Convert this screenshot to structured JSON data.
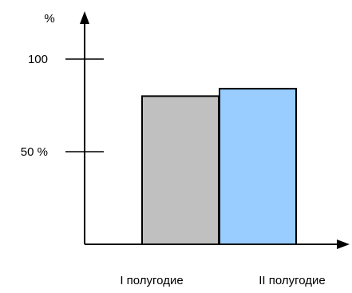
{
  "chart_data": {
    "type": "bar",
    "unit_label": "%",
    "categories": [
      "I полугодие",
      "II полугодие"
    ],
    "values": [
      80,
      84
    ],
    "y_ticks": [
      {
        "value": 50,
        "label": "50 %"
      },
      {
        "value": 100,
        "label": "100"
      }
    ],
    "ylim": [
      0,
      120
    ],
    "grid": false,
    "legend": "none",
    "bar_colors": [
      "#c0c0c0",
      "#99ccff"
    ]
  }
}
